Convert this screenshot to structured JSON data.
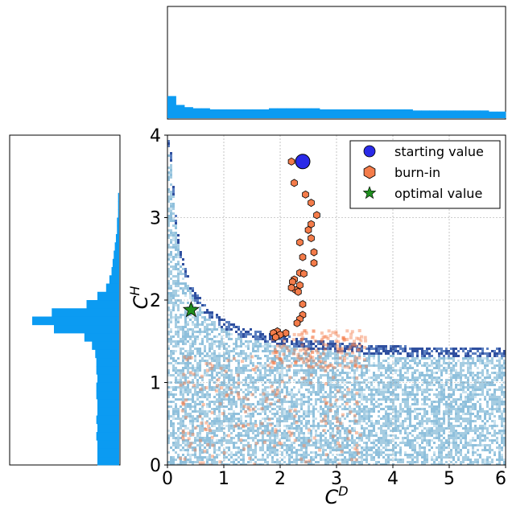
{
  "chart_data": {
    "type": "scatter",
    "xlabel": "C^D",
    "ylabel": "C^H",
    "xlim": [
      0,
      6
    ],
    "ylim": [
      0,
      4
    ],
    "x_ticks": [
      "0",
      "1",
      "2",
      "3",
      "4",
      "5",
      "6"
    ],
    "y_ticks": [
      "0",
      "1",
      "2",
      "3",
      "4"
    ],
    "grid": true,
    "legend_position": "top-right",
    "colors": {
      "density_light": "#a6cde2",
      "density_dark": "#2f4f9f",
      "burn_in": "#f47c4a",
      "starting": "#2a2ae8",
      "optimal": "#1f8f1f",
      "histogram": "#0b9bf2"
    },
    "series": [
      {
        "name": "starting value",
        "marker": "circle",
        "points": [
          [
            2.4,
            3.68
          ]
        ]
      },
      {
        "name": "burn-in",
        "marker": "hexagon",
        "points": [
          [
            2.2,
            3.68
          ],
          [
            2.25,
            3.42
          ],
          [
            2.45,
            3.28
          ],
          [
            2.55,
            3.18
          ],
          [
            2.65,
            3.03
          ],
          [
            2.55,
            2.92
          ],
          [
            2.5,
            2.85
          ],
          [
            2.55,
            2.75
          ],
          [
            2.35,
            2.7
          ],
          [
            2.6,
            2.58
          ],
          [
            2.4,
            2.52
          ],
          [
            2.6,
            2.45
          ],
          [
            2.35,
            2.33
          ],
          [
            2.42,
            2.32
          ],
          [
            2.25,
            2.25
          ],
          [
            2.22,
            2.22
          ],
          [
            2.35,
            2.18
          ],
          [
            2.28,
            2.12
          ],
          [
            2.2,
            2.15
          ],
          [
            2.32,
            2.1
          ],
          [
            2.4,
            1.95
          ],
          [
            2.4,
            1.82
          ],
          [
            2.35,
            1.77
          ],
          [
            2.3,
            1.72
          ],
          [
            2.1,
            1.6
          ],
          [
            1.95,
            1.62
          ],
          [
            2.0,
            1.58
          ],
          [
            1.88,
            1.6
          ],
          [
            1.92,
            1.55
          ]
        ]
      },
      {
        "name": "optimal value",
        "marker": "star",
        "points": [
          [
            0.42,
            1.88
          ]
        ]
      }
    ],
    "density_ridge": [
      [
        0.05,
        3.9
      ],
      [
        0.1,
        3.4
      ],
      [
        0.15,
        3.0
      ],
      [
        0.2,
        2.7
      ],
      [
        0.3,
        2.4
      ],
      [
        0.4,
        2.2
      ],
      [
        0.5,
        2.05
      ],
      [
        0.7,
        1.88
      ],
      [
        1.0,
        1.72
      ],
      [
        1.3,
        1.63
      ],
      [
        1.7,
        1.57
      ],
      [
        2.0,
        1.53
      ],
      [
        2.5,
        1.48
      ],
      [
        3.0,
        1.45
      ],
      [
        3.5,
        1.42
      ],
      [
        4.0,
        1.4
      ],
      [
        5.0,
        1.38
      ],
      [
        6.0,
        1.37
      ]
    ],
    "top_histogram": {
      "bins": 40,
      "range": [
        0,
        6
      ],
      "relative_heights": [
        0.2,
        0.12,
        0.1,
        0.09,
        0.09,
        0.08,
        0.08,
        0.08,
        0.08,
        0.08,
        0.08,
        0.08,
        0.09,
        0.09,
        0.09,
        0.09,
        0.09,
        0.09,
        0.08,
        0.08,
        0.08,
        0.08,
        0.08,
        0.08,
        0.08,
        0.08,
        0.08,
        0.08,
        0.08,
        0.07,
        0.07,
        0.07,
        0.07,
        0.07,
        0.07,
        0.07,
        0.07,
        0.07,
        0.06,
        0.06
      ]
    },
    "left_histogram": {
      "bins": 40,
      "range": [
        0,
        4
      ],
      "relative_widths": [
        0.2,
        0.2,
        0.2,
        0.21,
        0.2,
        0.21,
        0.2,
        0.2,
        0.21,
        0.21,
        0.2,
        0.21,
        0.21,
        0.22,
        0.25,
        0.32,
        0.6,
        0.8,
        0.62,
        0.3,
        0.2,
        0.12,
        0.09,
        0.07,
        0.06,
        0.05,
        0.04,
        0.03,
        0.02,
        0.02,
        0.01,
        0.01,
        0.01,
        0.0,
        0.0,
        0.0,
        0.0,
        0.0,
        0.0,
        0.0
      ]
    }
  }
}
